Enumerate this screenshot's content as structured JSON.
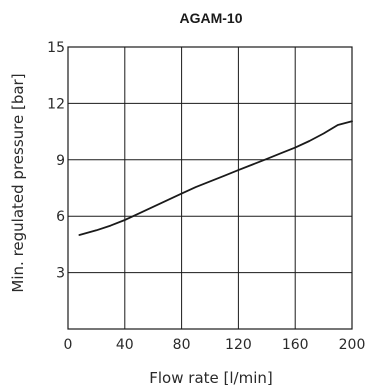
{
  "chart_data": {
    "type": "line",
    "title": "AGAM-10",
    "xlabel": "Flow rate [l/min]",
    "ylabel": "Min. regulated pressure [bar]",
    "xlim": [
      0,
      200
    ],
    "ylim": [
      0,
      15
    ],
    "xticks": [
      "0",
      "40",
      "80",
      "120",
      "160",
      "200"
    ],
    "yticks": [
      "3",
      "6",
      "9",
      "12",
      "15"
    ],
    "grid": true,
    "series": [
      {
        "x": [
          8,
          20,
          30,
          40,
          50,
          60,
          70,
          80,
          90,
          100,
          110,
          120,
          130,
          140,
          150,
          160,
          170,
          180,
          190,
          200
        ],
        "y": [
          5.0,
          5.25,
          5.5,
          5.8,
          6.15,
          6.5,
          6.85,
          7.2,
          7.55,
          7.85,
          8.15,
          8.45,
          8.75,
          9.05,
          9.35,
          9.65,
          10.0,
          10.4,
          10.85,
          11.05
        ],
        "color": "#1a1a1a"
      }
    ]
  }
}
